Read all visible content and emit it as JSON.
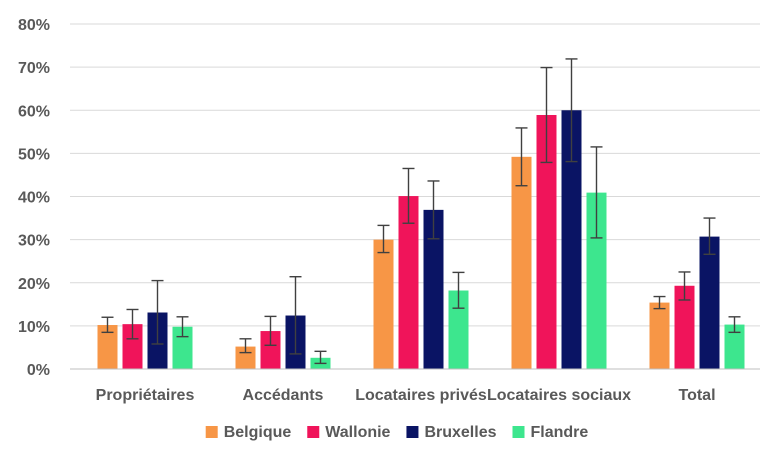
{
  "chart_data": {
    "type": "bar",
    "title": "",
    "xlabel": "",
    "ylabel": "",
    "ylim": [
      0,
      80
    ],
    "yticks": [
      0,
      10,
      20,
      30,
      40,
      50,
      60,
      70,
      80
    ],
    "ytick_labels": [
      "0%",
      "10%",
      "20%",
      "30%",
      "40%",
      "50%",
      "60%",
      "70%",
      "80%"
    ],
    "grid": true,
    "legend_position": "bottom",
    "categories": [
      "Propriétaires",
      "Accédants",
      "Locataires privés",
      "Locataires sociaux",
      "Total"
    ],
    "series": [
      {
        "name": "Belgique",
        "color": "#F79646",
        "values": [
          10.2,
          5.2,
          30.0,
          49.2,
          15.4
        ],
        "err_low": [
          8.5,
          3.8,
          27.0,
          42.5,
          14.0
        ],
        "err_high": [
          12.0,
          7.0,
          33.3,
          55.9,
          16.8
        ]
      },
      {
        "name": "Wallonie",
        "color": "#F0145A",
        "values": [
          10.4,
          8.8,
          40.1,
          58.9,
          19.3
        ],
        "err_low": [
          7.0,
          5.5,
          33.8,
          47.9,
          16.0
        ],
        "err_high": [
          13.8,
          12.2,
          46.5,
          69.9,
          22.5
        ]
      },
      {
        "name": "Bruxelles",
        "color": "#0A1464",
        "values": [
          13.1,
          12.4,
          36.9,
          60.0,
          30.7
        ],
        "err_low": [
          5.8,
          3.5,
          30.2,
          48.1,
          26.6
        ],
        "err_high": [
          20.5,
          21.4,
          43.6,
          71.9,
          35.0
        ]
      },
      {
        "name": "Flandre",
        "color": "#3DE68E",
        "values": [
          9.8,
          2.6,
          18.2,
          40.9,
          10.3
        ],
        "err_low": [
          7.5,
          1.3,
          14.1,
          30.4,
          8.5
        ],
        "err_high": [
          12.1,
          4.1,
          22.4,
          51.5,
          12.1
        ]
      }
    ]
  }
}
